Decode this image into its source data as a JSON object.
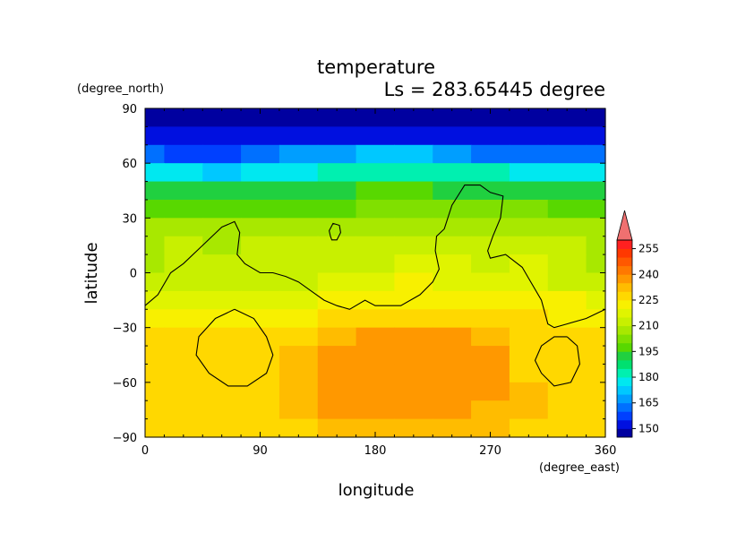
{
  "chart_data": {
    "type": "heatmap",
    "title": "temperature",
    "subtitle": "Ls = 283.65445 degree",
    "xlabel": "longitude",
    "ylabel": "latitude",
    "xunits": "(degree_east)",
    "yunits": "(degree_north)",
    "xlim": [
      0,
      360
    ],
    "ylim": [
      -90,
      90
    ],
    "x_ticks": [
      0,
      90,
      180,
      270,
      360
    ],
    "y_ticks": [
      90,
      60,
      30,
      0,
      -30,
      -60,
      -90
    ],
    "x_tick_labels": [
      "0",
      "90",
      "180",
      "270",
      "360"
    ],
    "y_tick_labels": [
      "90",
      "60",
      "30",
      "0",
      "−30",
      "−60",
      "−90"
    ],
    "colorbar": {
      "levels": [
        145,
        150,
        155,
        160,
        165,
        170,
        175,
        180,
        185,
        190,
        195,
        200,
        205,
        210,
        215,
        220,
        225,
        230,
        235,
        240,
        245,
        250,
        255,
        260
      ],
      "colors": [
        "#0000a0",
        "#0010e0",
        "#0040ff",
        "#0070ff",
        "#009eff",
        "#00c8ff",
        "#00e8f0",
        "#00f0b0",
        "#00e070",
        "#20d040",
        "#58d800",
        "#80e000",
        "#a8e800",
        "#c8f000",
        "#e0f400",
        "#f8f000",
        "#ffd800",
        "#ffbc00",
        "#ff9800",
        "#ff7800",
        "#ff5800",
        "#ff3800",
        "#ff2020"
      ],
      "tick_labels": [
        "150",
        "165",
        "180",
        "195",
        "210",
        "225",
        "240",
        "255"
      ],
      "extend_color": "#f07070"
    },
    "rows": [
      {
        "lat": 85,
        "values": [
          147,
          147,
          147,
          147,
          147,
          147,
          147,
          147,
          147,
          147,
          147,
          147,
          147
        ]
      },
      {
        "lat": 75,
        "values": [
          150,
          150,
          150,
          150,
          150,
          152,
          152,
          153,
          150,
          150,
          150,
          150,
          150
        ]
      },
      {
        "lat": 65,
        "values": [
          163,
          158,
          156,
          160,
          165,
          168,
          170,
          172,
          168,
          164,
          160,
          162,
          163
        ]
      },
      {
        "lat": 55,
        "values": [
          179,
          175,
          172,
          175,
          178,
          180,
          182,
          184,
          182,
          180,
          178,
          178,
          179
        ]
      },
      {
        "lat": 45,
        "values": [
          192,
          191,
          190,
          191,
          192,
          193,
          195,
          196,
          194,
          194,
          193,
          192,
          192
        ]
      },
      {
        "lat": 35,
        "values": [
          197,
          198,
          197,
          196,
          197,
          198,
          200,
          200,
          201,
          201,
          200,
          198,
          197
        ]
      },
      {
        "lat": 25,
        "values": [
          205,
          206,
          205,
          205,
          205,
          205,
          206,
          205,
          207,
          208,
          207,
          206,
          205
        ]
      },
      {
        "lat": 15,
        "values": [
          208,
          210,
          209,
          210,
          213,
          212,
          211,
          212,
          213,
          213,
          214,
          212,
          208
        ]
      },
      {
        "lat": 5,
        "values": [
          209,
          211,
          210,
          211,
          212,
          213,
          214,
          216,
          216,
          214,
          215,
          214,
          209
        ]
      },
      {
        "lat": -5,
        "values": [
          210,
          212,
          213,
          212,
          213,
          216,
          219,
          221,
          219,
          218,
          216,
          214,
          210
        ]
      },
      {
        "lat": -15,
        "values": [
          215,
          216,
          218,
          218,
          219,
          221,
          223,
          224,
          224,
          223,
          221,
          220,
          215
        ]
      },
      {
        "lat": -25,
        "values": [
          222,
          222,
          223,
          223,
          223,
          225,
          227,
          228,
          228,
          227,
          225,
          224,
          222
        ]
      },
      {
        "lat": -35,
        "values": [
          225,
          226,
          226,
          226,
          228,
          232,
          236,
          237,
          237,
          234,
          228,
          226,
          225
        ]
      },
      {
        "lat": -45,
        "values": [
          226,
          226,
          227,
          228,
          230,
          235,
          238,
          238,
          238,
          236,
          229,
          227,
          226
        ]
      },
      {
        "lat": -55,
        "values": [
          227,
          227,
          228,
          228,
          231,
          235,
          238,
          238,
          238,
          235,
          229,
          228,
          227
        ]
      },
      {
        "lat": -65,
        "values": [
          228,
          228,
          229,
          229,
          231,
          236,
          238,
          238,
          238,
          236,
          230,
          229,
          228
        ]
      },
      {
        "lat": -75,
        "values": [
          228,
          228,
          229,
          229,
          231,
          236,
          237,
          238,
          237,
          233,
          230,
          229,
          228
        ]
      },
      {
        "lat": -85,
        "values": [
          228,
          228,
          228,
          228,
          229,
          230,
          230,
          231,
          231,
          230,
          229,
          228,
          228
        ]
      }
    ],
    "row_lons": [
      0,
      30,
      60,
      90,
      120,
      150,
      180,
      210,
      240,
      270,
      300,
      330,
      360
    ],
    "contours": [
      {
        "name": "coastline",
        "points": [
          [
            0,
            -18
          ],
          [
            10,
            -12
          ],
          [
            20,
            0
          ],
          [
            30,
            5
          ],
          [
            45,
            15
          ],
          [
            60,
            25
          ],
          [
            70,
            28
          ],
          [
            74,
            22
          ],
          [
            72,
            10
          ],
          [
            78,
            5
          ],
          [
            90,
            0
          ],
          [
            100,
            0
          ],
          [
            110,
            -2
          ],
          [
            120,
            -5
          ],
          [
            130,
            -10
          ],
          [
            140,
            -15
          ],
          [
            150,
            -18
          ],
          [
            160,
            -20
          ],
          [
            172,
            -15
          ],
          [
            180,
            -18
          ],
          [
            200,
            -18
          ],
          [
            215,
            -12
          ],
          [
            225,
            -5
          ],
          [
            230,
            2
          ],
          [
            227,
            12
          ],
          [
            228,
            20
          ],
          [
            234,
            24
          ],
          [
            240,
            37
          ],
          [
            250,
            48
          ],
          [
            262,
            48
          ],
          [
            270,
            44
          ],
          [
            280,
            42
          ],
          [
            278,
            30
          ],
          [
            272,
            20
          ],
          [
            268,
            12
          ],
          [
            270,
            8
          ],
          [
            282,
            10
          ],
          [
            295,
            3
          ],
          [
            300,
            -3
          ],
          [
            310,
            -15
          ],
          [
            315,
            -28
          ],
          [
            320,
            -30
          ],
          [
            330,
            -28
          ],
          [
            345,
            -25
          ],
          [
            360,
            -20
          ]
        ]
      },
      {
        "name": "island",
        "points": [
          [
            145,
            20
          ],
          [
            144,
            23
          ],
          [
            147,
            27
          ],
          [
            152,
            26
          ],
          [
            153,
            22
          ],
          [
            150,
            18
          ],
          [
            146,
            18
          ],
          [
            145,
            20
          ]
        ]
      },
      {
        "name": "southwest-basin",
        "points": [
          [
            70,
            -20
          ],
          [
            85,
            -25
          ],
          [
            95,
            -35
          ],
          [
            100,
            -45
          ],
          [
            95,
            -55
          ],
          [
            80,
            -62
          ],
          [
            65,
            -62
          ],
          [
            50,
            -55
          ],
          [
            40,
            -45
          ],
          [
            42,
            -35
          ],
          [
            55,
            -25
          ],
          [
            70,
            -20
          ]
        ]
      },
      {
        "name": "southeast-basin",
        "points": [
          [
            330,
            -35
          ],
          [
            338,
            -40
          ],
          [
            340,
            -50
          ],
          [
            333,
            -60
          ],
          [
            320,
            -62
          ],
          [
            310,
            -55
          ],
          [
            305,
            -48
          ],
          [
            310,
            -40
          ],
          [
            320,
            -35
          ],
          [
            330,
            -35
          ]
        ]
      }
    ]
  }
}
